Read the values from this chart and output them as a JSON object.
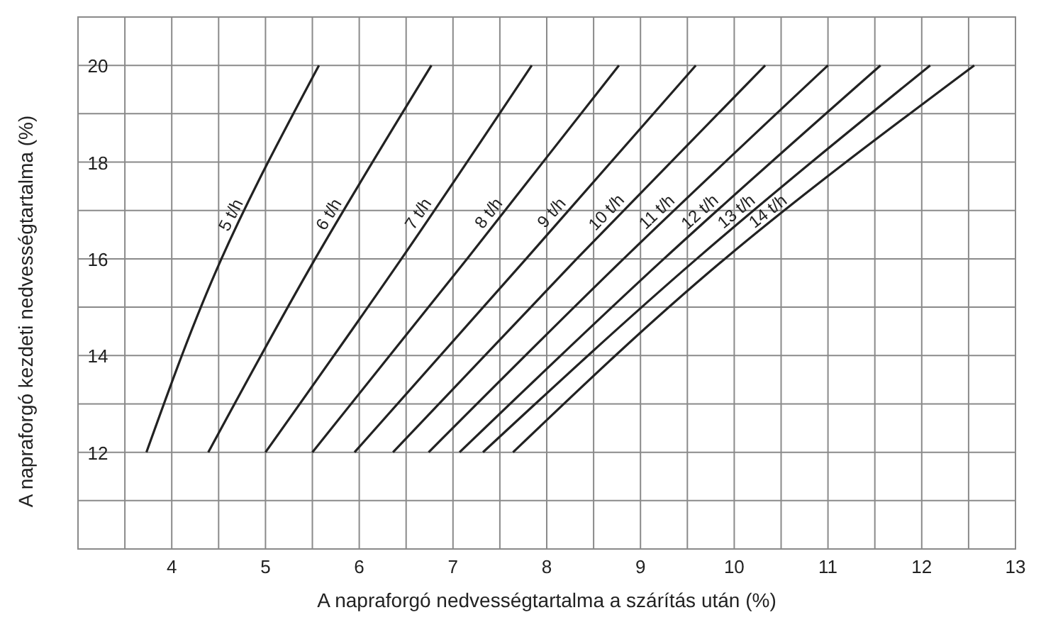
{
  "chart_data": {
    "type": "line",
    "xlabel": "A napraforgó nedvességtartalma a szárítás után (%)",
    "ylabel": "A napraforgó kezdeti nedvességtartalma (%)",
    "xlim": [
      3,
      13
    ],
    "ylim": [
      10,
      21
    ],
    "xticks": [
      {
        "value": 3.5,
        "label": null
      },
      4,
      {
        "value": 4.5,
        "label": null
      },
      5,
      {
        "value": 5.5,
        "label": null
      },
      6,
      {
        "value": 6.5,
        "label": null
      },
      7,
      {
        "value": 7.5,
        "label": null
      },
      8,
      {
        "value": 8.5,
        "label": null
      },
      9,
      {
        "value": 9.5,
        "label": null
      },
      10,
      {
        "value": 10.5,
        "label": null
      },
      11,
      {
        "value": 11.5,
        "label": null
      },
      12,
      {
        "value": 12.5,
        "label": null
      },
      13
    ],
    "yticks": [
      {
        "value": 11,
        "label": null
      },
      12,
      {
        "value": 13,
        "label": null
      },
      14,
      {
        "value": 15,
        "label": null
      },
      16,
      {
        "value": 17,
        "label": null
      },
      18,
      {
        "value": 19,
        "label": null
      },
      20
    ],
    "grid": true,
    "marker": "none",
    "line_style": "solid",
    "series": [
      {
        "name": "5 t/h",
        "color": "#222222",
        "x": [
          3.73,
          4.53,
          5.57
        ],
        "values": [
          12,
          16,
          20
        ]
      },
      {
        "name": "6 t/h",
        "color": "#222222",
        "x": [
          4.39,
          5.53,
          6.77
        ],
        "values": [
          12,
          16,
          20
        ]
      },
      {
        "name": "7 t/h",
        "color": "#222222",
        "x": [
          5.0,
          6.45,
          7.84
        ],
        "values": [
          12,
          16,
          20
        ]
      },
      {
        "name": "8 t/h",
        "color": "#222222",
        "x": [
          5.5,
          7.15,
          8.77
        ],
        "values": [
          12,
          16,
          20
        ]
      },
      {
        "name": "9 t/h",
        "color": "#222222",
        "x": [
          5.95,
          7.78,
          9.59
        ],
        "values": [
          12,
          16,
          20
        ]
      },
      {
        "name": "10 t/h",
        "color": "#222222",
        "x": [
          6.36,
          8.32,
          10.33
        ],
        "values": [
          12,
          16,
          20
        ]
      },
      {
        "name": "11 t/h",
        "color": "#222222",
        "x": [
          6.74,
          8.82,
          11.0
        ],
        "values": [
          12,
          16,
          20
        ]
      },
      {
        "name": "12 t/h",
        "color": "#222222",
        "x": [
          7.07,
          9.25,
          11.56
        ],
        "values": [
          12,
          16,
          20
        ]
      },
      {
        "name": "13 t/h",
        "color": "#222222",
        "x": [
          7.32,
          9.6,
          12.09
        ],
        "values": [
          12,
          16,
          20
        ]
      },
      {
        "name": "14 t/h",
        "color": "#222222",
        "x": [
          7.64,
          9.9,
          12.56
        ],
        "values": [
          12,
          16,
          20
        ]
      }
    ]
  }
}
